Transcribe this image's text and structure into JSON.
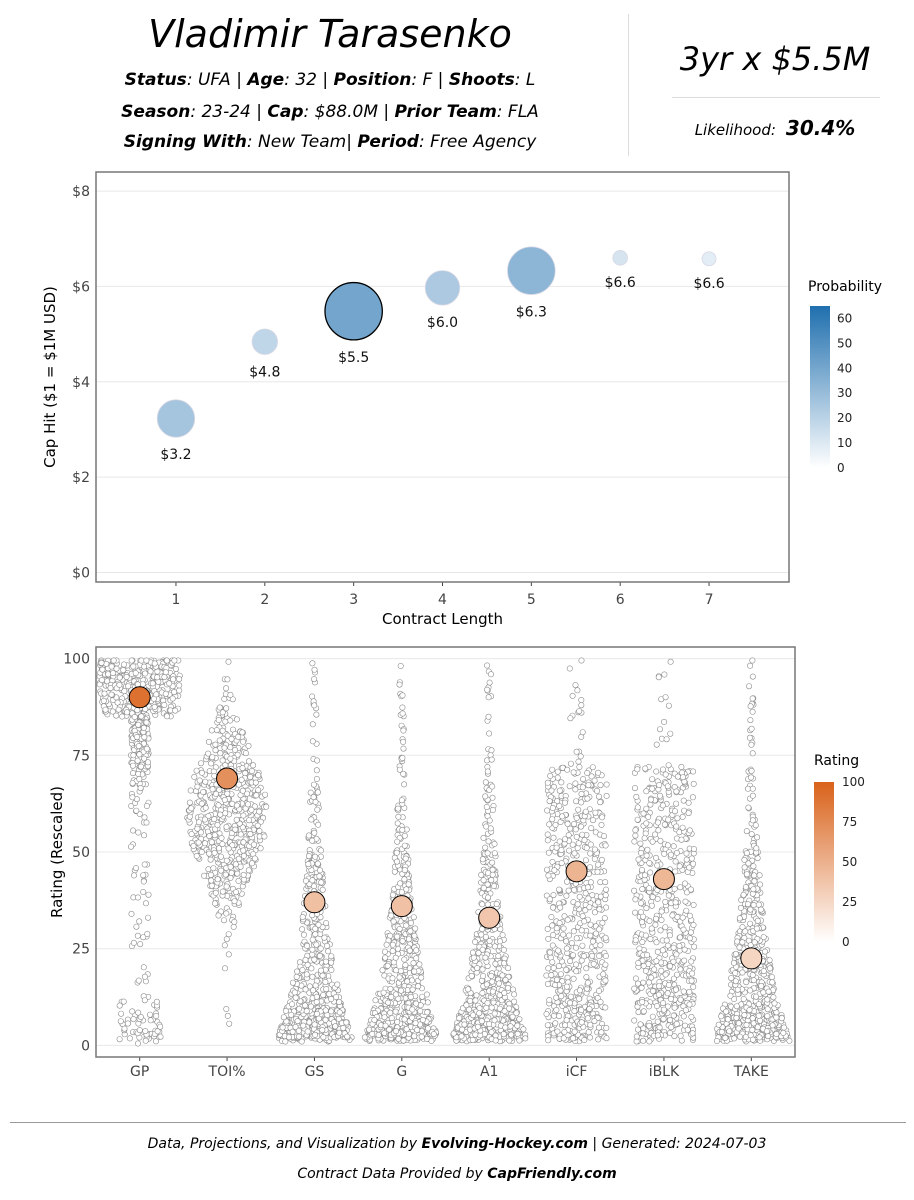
{
  "header": {
    "player_name": "Vladimir Tarasenko",
    "status_label": "Status",
    "status_value": ": UFA",
    "age_label": "Age",
    "age_value": ": 32",
    "position_label": "Position",
    "position_value": ": F",
    "shoots_label": "Shoots",
    "shoots_value": ": L",
    "season_label": "Season",
    "season_value": ": 23-24",
    "cap_label": "Cap",
    "cap_value": ": $88.0M",
    "prior_team_label": "Prior Team",
    "prior_team_value": ": FLA",
    "signing_label": "Signing With",
    "signing_value": ": New Team",
    "period_label": "Period",
    "period_value": ": Free Agency",
    "separator": " | ",
    "separator_tight": "| "
  },
  "projection": {
    "contract": "3yr x $5.5M",
    "likelihood_label": "Likelihood:",
    "likelihood_value": "30.4%"
  },
  "colors": {
    "prob_high": "#1f6fae",
    "prob_low": "#ffffff",
    "rating_high": "#d9621a",
    "rating_low": "#ffffff",
    "gridline": "#e8e8e8",
    "panel_border": "#777777"
  },
  "chart_data": [
    {
      "type": "scatter",
      "title": "",
      "xlabel": "Contract Length",
      "ylabel": "Cap Hit ($1 = $1M USD)",
      "xlim": [
        0.1,
        7.9
      ],
      "ylim": [
        -0.2,
        8.4
      ],
      "x_ticks": [
        1,
        2,
        3,
        4,
        5,
        6,
        7
      ],
      "y_ticks": [
        0,
        2,
        4,
        6,
        8
      ],
      "y_tick_labels": [
        "$0",
        "$2",
        "$4",
        "$6",
        "$8"
      ],
      "points": [
        {
          "length": 1,
          "cap_hit": 3.23,
          "probability": 13,
          "label": "$3.2",
          "selected": false
        },
        {
          "length": 2,
          "cap_hit": 4.84,
          "probability": 6,
          "label": "$4.8",
          "selected": false
        },
        {
          "length": 3,
          "cap_hit": 5.48,
          "probability": 30.4,
          "label": "$5.5",
          "selected": true
        },
        {
          "length": 4,
          "cap_hit": 5.97,
          "probability": 11,
          "label": "$6.0",
          "selected": false
        },
        {
          "length": 5,
          "cap_hit": 6.33,
          "probability": 21,
          "label": "$6.3",
          "selected": false
        },
        {
          "length": 6,
          "cap_hit": 6.6,
          "probability": 2,
          "label": "$6.6",
          "selected": false
        },
        {
          "length": 7,
          "cap_hit": 6.58,
          "probability": 0.5,
          "label": "$6.6",
          "selected": false
        }
      ],
      "legend": {
        "title": "Probability",
        "min": 0,
        "max": 65,
        "ticks": [
          0,
          10,
          20,
          30,
          40,
          50,
          60
        ],
        "position": "right"
      }
    },
    {
      "type": "scatter",
      "subtype": "beeswarm",
      "title": "",
      "xlabel": "",
      "ylabel": "Rating (Rescaled)",
      "ylim": [
        -3,
        103
      ],
      "y_ticks": [
        0,
        25,
        50,
        75,
        100
      ],
      "categories": [
        "GP",
        "TOI%",
        "GS",
        "G",
        "A1",
        "iCF",
        "iBLK",
        "TAKE"
      ],
      "player_ratings": [
        90,
        69,
        37,
        36,
        33,
        45,
        43,
        22.5
      ],
      "distribution_shape": [
        "top-heavy",
        "mid-centered",
        "bottom-heavy",
        "bottom-heavy",
        "bottom-heavy",
        "spread",
        "spread",
        "bottom-heavy"
      ],
      "legend": {
        "title": "Rating",
        "min": 0,
        "max": 100,
        "ticks": [
          0,
          25,
          50,
          75,
          100
        ],
        "position": "right"
      }
    }
  ],
  "footer": {
    "line1_prefix": "Data, Projections, and Visualization by ",
    "line1_brand": "Evolving-Hockey.com",
    "line1_suffix": " | Generated: 2024-07-03",
    "line2_prefix": "Contract Data Provided by ",
    "line2_brand": "CapFriendly.com"
  }
}
